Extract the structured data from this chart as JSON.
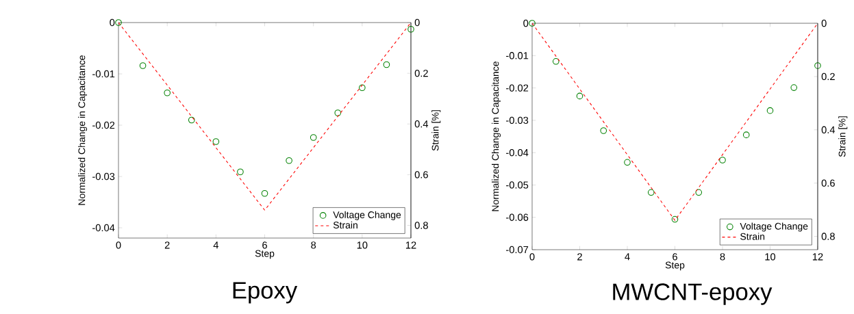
{
  "chart_data": [
    {
      "type": "scatter",
      "title": "Epoxy",
      "xlabel": "Step",
      "ylabel": "Normalized Change in Capacitance",
      "y2label": "Strain [%]",
      "x": [
        0,
        1,
        2,
        3,
        4,
        5,
        6,
        7,
        8,
        9,
        10,
        11,
        12
      ],
      "series": [
        {
          "name": "Voltage Change",
          "color": "#008000",
          "marker": "circle",
          "values": [
            0,
            -0.0084,
            -0.0137,
            -0.019,
            -0.0232,
            -0.0291,
            -0.0333,
            -0.0269,
            -0.0224,
            -0.0176,
            -0.0127,
            -0.0082,
            -0.0013
          ]
        },
        {
          "name": "Strain",
          "type": "line",
          "axis": "y2",
          "color": "#ff0000",
          "line_style": "dashed",
          "x": [
            0,
            6,
            12
          ],
          "values": [
            0,
            0.74,
            0
          ]
        }
      ],
      "xlim": [
        0,
        12
      ],
      "xticks": [
        0,
        2,
        4,
        6,
        8,
        10,
        12
      ],
      "ylim": [
        -0.042,
        0
      ],
      "yticks": [
        -0.04,
        -0.03,
        -0.02,
        -0.01,
        0
      ],
      "y2lim": [
        0.85,
        0
      ],
      "y2ticks": [
        0,
        0.2,
        0.4,
        0.6,
        0.8
      ],
      "legend": "bottom right"
    },
    {
      "type": "scatter",
      "title": "MWCNT-epoxy",
      "xlabel": "Step",
      "ylabel": "Normalized Change in Capacitance",
      "y2label": "Strain [%]",
      "x": [
        0,
        1,
        2,
        3,
        4,
        5,
        6,
        7,
        8,
        9,
        10,
        11,
        12
      ],
      "series": [
        {
          "name": "Voltage Change",
          "color": "#008000",
          "marker": "circle",
          "values": [
            0,
            -0.0118,
            -0.0225,
            -0.0332,
            -0.043,
            -0.0523,
            -0.0606,
            -0.0523,
            -0.0423,
            -0.0345,
            -0.027,
            -0.0199,
            -0.0131
          ]
        },
        {
          "name": "Strain",
          "type": "line",
          "axis": "y2",
          "color": "#ff0000",
          "line_style": "dashed",
          "x": [
            0,
            6,
            12
          ],
          "values": [
            0,
            0.74,
            0
          ]
        }
      ],
      "xlim": [
        0,
        12
      ],
      "xticks": [
        0,
        2,
        4,
        6,
        8,
        10,
        12
      ],
      "ylim": [
        -0.07,
        0
      ],
      "yticks": [
        -0.07,
        -0.06,
        -0.05,
        -0.04,
        -0.03,
        -0.02,
        -0.01,
        0
      ],
      "y2lim": [
        0.85,
        0
      ],
      "y2ticks": [
        0,
        0.2,
        0.4,
        0.6,
        0.8
      ],
      "legend": "bottom right"
    }
  ]
}
